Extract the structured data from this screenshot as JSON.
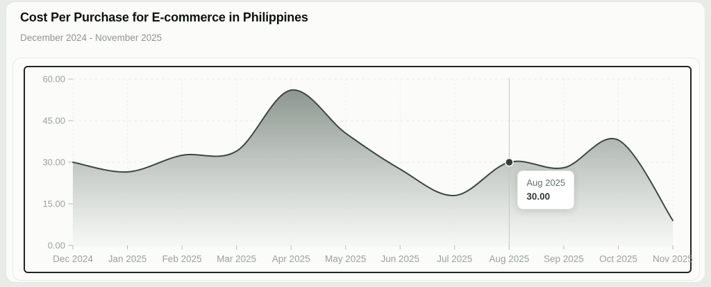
{
  "header": {
    "title": "Cost Per Purchase for E-commerce in Philippines",
    "subtitle": "December 2024 - November 2025"
  },
  "chart_data": {
    "type": "area",
    "title": "Cost Per Purchase for E-commerce in Philippines",
    "xlabel": "",
    "ylabel": "",
    "categories": [
      "Dec 2024",
      "Jan 2025",
      "Feb 2025",
      "Mar 2025",
      "Apr 2025",
      "May 2025",
      "Jun 2025",
      "Jul 2025",
      "Aug 2025",
      "Sep 2025",
      "Oct 2025",
      "Nov 2025"
    ],
    "values": [
      30,
      26.5,
      32.5,
      34,
      56,
      40.5,
      27.5,
      18,
      30,
      28,
      38,
      9
    ],
    "ylim": [
      0,
      60
    ],
    "yticks": [
      0,
      15,
      30,
      45,
      60
    ],
    "ytick_labels": [
      "0.00",
      "15.00",
      "30.00",
      "45.00",
      "60.00"
    ],
    "grid": true,
    "legend": "none",
    "line_color": "#3b463f",
    "fill_top_color": "#848e87",
    "fill_bottom_color": "#f5f7f4",
    "selected_point": {
      "index": 8,
      "category": "Aug 2025",
      "value": 30
    }
  },
  "tooltip": {
    "title": "Aug 2025",
    "value": "30.00"
  },
  "colors": {
    "page_bg": "#e9ebe7",
    "card_bg": "#fbfcfa",
    "chart_border": "#20251f",
    "axis_label": "#98a19b",
    "grid_line": "#e8ebe6",
    "crosshair": "#c2c8c2",
    "marker": "#333d37"
  }
}
